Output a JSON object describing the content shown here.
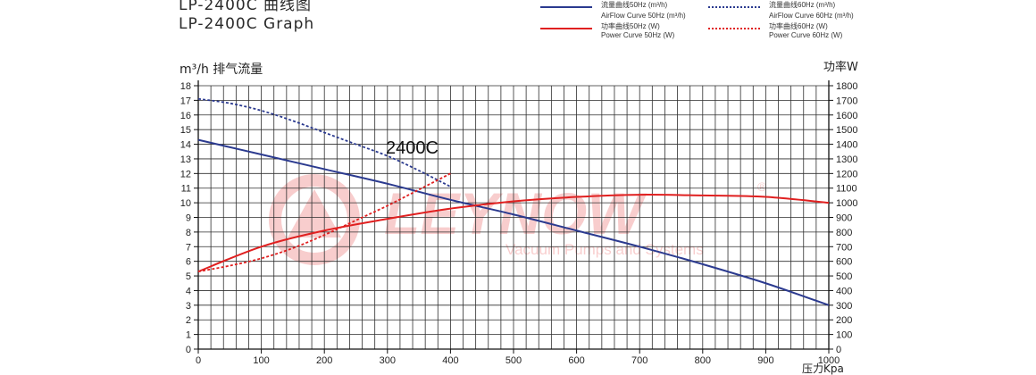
{
  "title": {
    "line1": "LP-2400C   曲线图",
    "line2": "LP-2400C   Graph"
  },
  "legend": [
    {
      "cn": "流量曲线50Hz (m³/h)",
      "en": "AirFlow Curve 50Hz (m³/h)",
      "color": "#2b3a8f",
      "dashed": false
    },
    {
      "cn": "流量曲线60Hz (m³/h)",
      "en": "AirFlow Curve 60Hz (m³/h)",
      "color": "#2b3a8f",
      "dashed": true
    },
    {
      "cn": "功率曲线50Hz (W)",
      "en": "Power Curve 50Hz (W)",
      "color": "#e02020",
      "dashed": false
    },
    {
      "cn": "功率曲线60Hz (W)",
      "en": "Power Curve 60Hz (W)",
      "color": "#e02020",
      "dashed": true
    }
  ],
  "watermark": {
    "brand": "LEYNOW",
    "registered": "®",
    "tagline": "Vacuum Pumps and Systems"
  },
  "chart_data": {
    "type": "line",
    "title": "2400C",
    "xlabel": "压力Kpa",
    "ylabel": "m³/h 排气流量",
    "y2label": "功率W",
    "xlim": [
      0,
      1000
    ],
    "ylim": [
      0,
      18
    ],
    "y2lim": [
      0,
      1800
    ],
    "xticks": [
      0,
      100,
      200,
      300,
      400,
      500,
      600,
      700,
      800,
      900,
      1000
    ],
    "yticks": [
      0,
      1,
      2,
      3,
      4,
      5,
      6,
      7,
      8,
      9,
      10,
      11,
      12,
      13,
      14,
      15,
      16,
      17,
      18
    ],
    "y2ticks": [
      0,
      100,
      200,
      300,
      400,
      500,
      600,
      700,
      800,
      900,
      1000,
      1100,
      1200,
      1300,
      1400,
      1500,
      1600,
      1700,
      1800
    ],
    "grid": true,
    "series": [
      {
        "name": "流量曲线50Hz (m³/h)",
        "axis": "left",
        "color": "#2b3a8f",
        "dashed": false,
        "x": [
          0,
          100,
          200,
          300,
          400,
          500,
          600,
          700,
          800,
          900,
          1000
        ],
        "y": [
          14.3,
          13.3,
          12.3,
          11.3,
          10.2,
          9.2,
          8.1,
          7.0,
          5.8,
          4.5,
          3.0
        ]
      },
      {
        "name": "流量曲线60Hz (m³/h)",
        "axis": "left",
        "color": "#2b3a8f",
        "dashed": true,
        "x": [
          0,
          50,
          100,
          150,
          200,
          250,
          300,
          350,
          400
        ],
        "y": [
          17.1,
          16.8,
          16.3,
          15.6,
          14.8,
          14.0,
          13.2,
          12.2,
          11.1
        ]
      },
      {
        "name": "功率曲线50Hz (W)",
        "axis": "right",
        "color": "#e02020",
        "dashed": false,
        "x": [
          0,
          100,
          200,
          300,
          400,
          500,
          600,
          700,
          800,
          900,
          1000
        ],
        "y": [
          530,
          700,
          810,
          890,
          960,
          1010,
          1040,
          1055,
          1050,
          1040,
          1000
        ]
      },
      {
        "name": "功率曲线60Hz (W)",
        "axis": "right",
        "color": "#e02020",
        "dashed": true,
        "x": [
          0,
          50,
          100,
          150,
          200,
          250,
          300,
          350,
          400
        ],
        "y": [
          530,
          570,
          620,
          690,
          780,
          880,
          980,
          1090,
          1200
        ]
      }
    ]
  }
}
